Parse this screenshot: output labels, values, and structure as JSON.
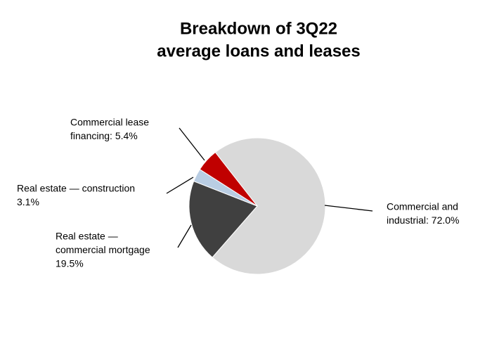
{
  "chart_data": {
    "type": "pie",
    "title": [
      "Breakdown of 3Q22",
      "average loans and leases"
    ],
    "categories": [
      "Commercial and industrial",
      "Real estate — commercial mortgage",
      "Real estate — construction",
      "Commercial lease financing"
    ],
    "values": [
      72.0,
      19.5,
      3.1,
      5.4
    ],
    "labels": [
      [
        "Commercial and",
        "industrial: 72.0%"
      ],
      [
        "Real estate —",
        "commercial mortgage",
        "19.5%"
      ],
      [
        "Real estate — construction",
        "3.1%"
      ],
      [
        "Commercial lease",
        "financing: 5.4%"
      ]
    ],
    "colors": [
      "#d9d9d9",
      "#404040",
      "#b9cde3",
      "#c00000"
    ]
  }
}
